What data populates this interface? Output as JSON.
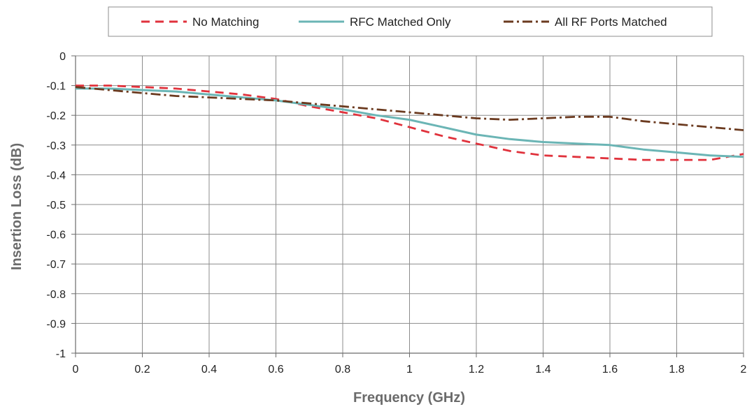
{
  "chart_data": {
    "type": "line",
    "title": "",
    "xlabel": "Frequency (GHz)",
    "ylabel": "Insertion Loss (dB)",
    "xlim": [
      0,
      2
    ],
    "ylim": [
      -1,
      0
    ],
    "x_ticks": [
      "0",
      "0.2",
      "0.4",
      "0.6",
      "0.8",
      "1",
      "1.2",
      "1.4",
      "1.6",
      "1.8",
      "2"
    ],
    "y_ticks": [
      "0",
      "-0.1",
      "-0.2",
      "-0.3",
      "-0.4",
      "-0.5",
      "-0.6",
      "-0.7",
      "-0.8",
      "-0.9",
      "-1"
    ],
    "grid": true,
    "legend_position": "top",
    "series": [
      {
        "name": "No Matching",
        "color": "#e0323c",
        "style": "dashed",
        "x": [
          0,
          0.1,
          0.2,
          0.3,
          0.4,
          0.5,
          0.6,
          0.7,
          0.8,
          0.9,
          1.0,
          1.1,
          1.2,
          1.3,
          1.4,
          1.5,
          1.6,
          1.7,
          1.8,
          1.9,
          2.0
        ],
        "y": [
          -0.1,
          -0.1,
          -0.105,
          -0.11,
          -0.12,
          -0.13,
          -0.145,
          -0.17,
          -0.19,
          -0.21,
          -0.24,
          -0.27,
          -0.295,
          -0.32,
          -0.335,
          -0.34,
          -0.345,
          -0.35,
          -0.35,
          -0.35,
          -0.33
        ]
      },
      {
        "name": "RFC Matched Only",
        "color": "#6bb5b5",
        "style": "solid",
        "x": [
          0,
          0.1,
          0.2,
          0.3,
          0.4,
          0.5,
          0.6,
          0.7,
          0.8,
          0.9,
          1.0,
          1.1,
          1.2,
          1.3,
          1.4,
          1.5,
          1.6,
          1.7,
          1.8,
          1.9,
          2.0
        ],
        "y": [
          -0.11,
          -0.11,
          -0.115,
          -0.12,
          -0.13,
          -0.14,
          -0.15,
          -0.165,
          -0.18,
          -0.2,
          -0.215,
          -0.24,
          -0.265,
          -0.28,
          -0.29,
          -0.295,
          -0.3,
          -0.315,
          -0.325,
          -0.335,
          -0.34
        ]
      },
      {
        "name": "All RF Ports Matched",
        "color": "#6b3a1f",
        "style": "dashdot",
        "x": [
          0,
          0.1,
          0.2,
          0.3,
          0.4,
          0.5,
          0.6,
          0.7,
          0.8,
          0.9,
          1.0,
          1.1,
          1.2,
          1.3,
          1.4,
          1.5,
          1.6,
          1.7,
          1.8,
          1.9,
          2.0
        ],
        "y": [
          -0.105,
          -0.115,
          -0.125,
          -0.135,
          -0.14,
          -0.145,
          -0.15,
          -0.16,
          -0.17,
          -0.18,
          -0.19,
          -0.2,
          -0.21,
          -0.215,
          -0.21,
          -0.205,
          -0.205,
          -0.22,
          -0.23,
          -0.24,
          -0.25
        ]
      }
    ]
  }
}
